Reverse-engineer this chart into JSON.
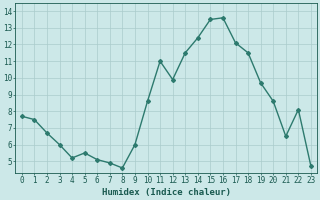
{
  "x": [
    0,
    1,
    2,
    3,
    4,
    5,
    6,
    7,
    8,
    9,
    10,
    11,
    12,
    13,
    14,
    15,
    16,
    17,
    18,
    19,
    20,
    21,
    22,
    23
  ],
  "y": [
    7.7,
    7.5,
    6.7,
    6.0,
    5.2,
    5.5,
    5.1,
    4.9,
    4.6,
    6.0,
    8.6,
    11.0,
    9.9,
    11.5,
    12.4,
    13.5,
    13.6,
    12.1,
    11.5,
    9.7,
    8.6,
    6.5,
    8.1,
    4.7
  ],
  "line_color": "#2d7a6e",
  "marker": "D",
  "markersize": 2.0,
  "linewidth": 1.0,
  "bg_color": "#cce8e8",
  "grid_color": "#aacccc",
  "xlabel": "Humidex (Indice chaleur)",
  "xlim": [
    -0.5,
    23.5
  ],
  "ylim": [
    4.3,
    14.5
  ],
  "yticks": [
    5,
    6,
    7,
    8,
    9,
    10,
    11,
    12,
    13,
    14
  ],
  "xticks": [
    0,
    1,
    2,
    3,
    4,
    5,
    6,
    7,
    8,
    9,
    10,
    11,
    12,
    13,
    14,
    15,
    16,
    17,
    18,
    19,
    20,
    21,
    22,
    23
  ],
  "tick_color": "#1a5a50",
  "label_fontsize": 5.5,
  "xlabel_fontsize": 6.5
}
